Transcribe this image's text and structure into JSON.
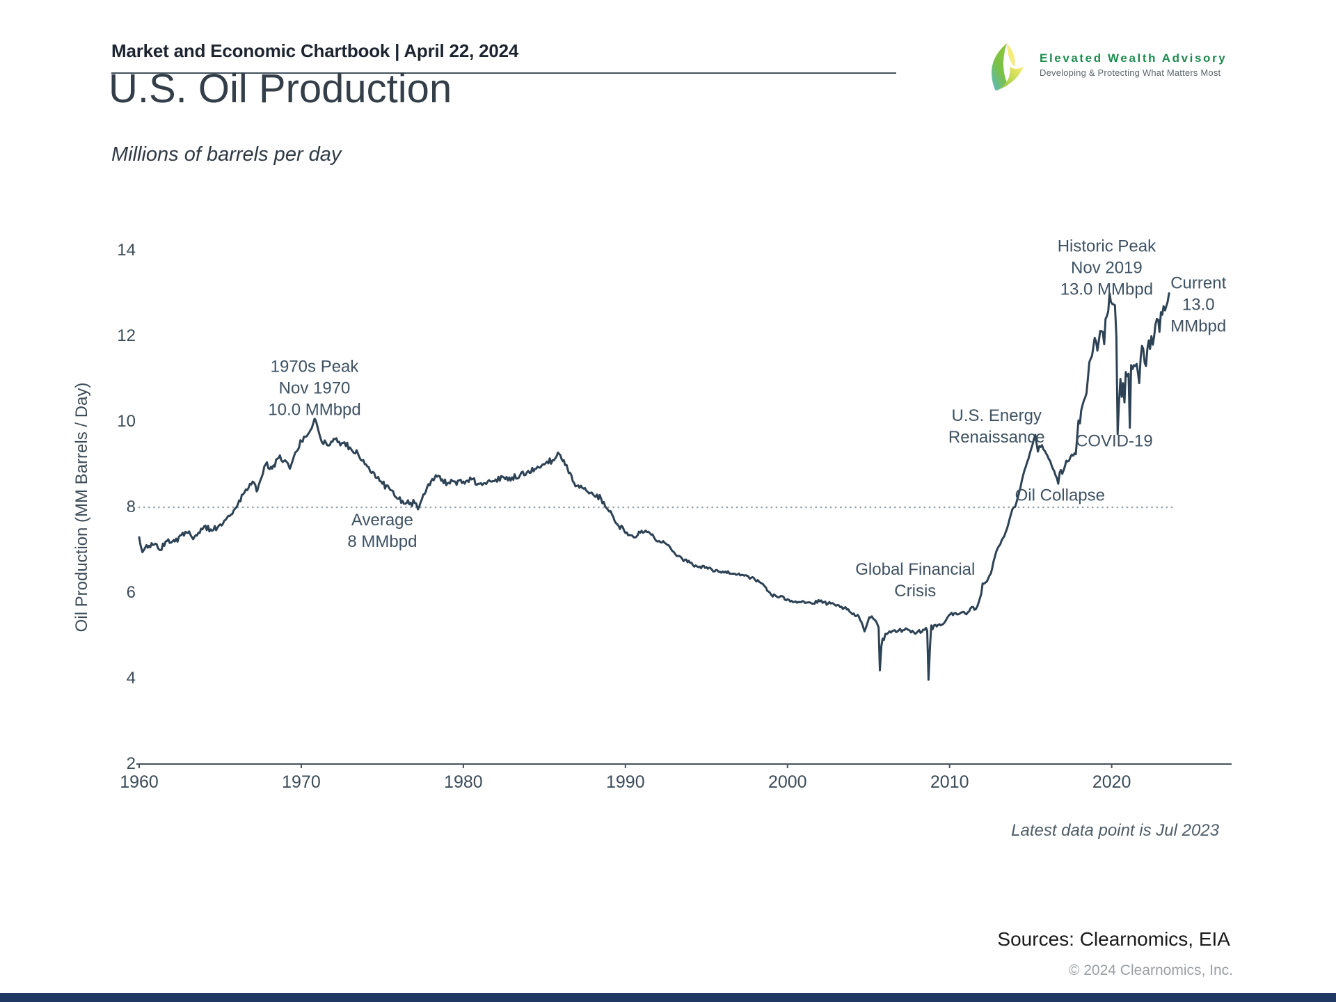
{
  "header": {
    "chartbook_title": "Market and Economic Chartbook | April 22, 2024"
  },
  "logo": {
    "name": "Elevated Wealth Advisory",
    "tagline": "Developing & Protecting What Matters Most",
    "icon": "leaf-sail-icon"
  },
  "title": "U.S. Oil Production",
  "subtitle": "Millions of barrels per day",
  "footer": {
    "latest_note": "Latest data point is Jul 2023",
    "sources": "Sources: Clearnomics, EIA",
    "copyright": "© 2024 Clearnomics, Inc."
  },
  "colors": {
    "line": "#2d4254",
    "axis": "#43525e",
    "dotted_average": "#98a3ab",
    "annotation_text": "#3e5263",
    "logo_green": "#1d8a4e",
    "footer_bar_navy": "#1f3864"
  },
  "chart_data": {
    "type": "line",
    "title": "U.S. Oil Production",
    "ylabel": "Oil Production (MM Barrels / Day)",
    "xlabel": "",
    "xlim": [
      1960,
      2027.4
    ],
    "ylim": [
      2,
      14
    ],
    "x_ticks": [
      1960,
      1970,
      1980,
      1990,
      2000,
      2010,
      2020
    ],
    "y_ticks": [
      2,
      4,
      6,
      8,
      10,
      12,
      14
    ],
    "grid": false,
    "legend": "none",
    "average_line": {
      "value": 8,
      "x_start": 1960,
      "x_end": 2023.8,
      "style": "dotted"
    },
    "series": [
      {
        "name": "U.S. oil production (MM barrels per day, monthly)",
        "points": [
          [
            1960.0,
            7.3
          ],
          [
            1960.2,
            6.95
          ],
          [
            1960.6,
            7.1
          ],
          [
            1961.0,
            7.15
          ],
          [
            1961.3,
            7.0
          ],
          [
            1961.8,
            7.25
          ],
          [
            1962.2,
            7.2
          ],
          [
            1962.6,
            7.35
          ],
          [
            1963.0,
            7.4
          ],
          [
            1963.4,
            7.3
          ],
          [
            1964.0,
            7.55
          ],
          [
            1964.5,
            7.45
          ],
          [
            1965.0,
            7.6
          ],
          [
            1965.5,
            7.8
          ],
          [
            1966.0,
            8.0
          ],
          [
            1966.5,
            8.35
          ],
          [
            1967.0,
            8.6
          ],
          [
            1967.3,
            8.4
          ],
          [
            1967.8,
            9.0
          ],
          [
            1968.2,
            8.9
          ],
          [
            1968.6,
            9.15
          ],
          [
            1969.0,
            9.1
          ],
          [
            1969.3,
            8.9
          ],
          [
            1969.7,
            9.3
          ],
          [
            1970.0,
            9.55
          ],
          [
            1970.4,
            9.7
          ],
          [
            1970.87,
            10.05
          ],
          [
            1971.2,
            9.6
          ],
          [
            1971.6,
            9.45
          ],
          [
            1972.0,
            9.6
          ],
          [
            1972.5,
            9.5
          ],
          [
            1973.0,
            9.4
          ],
          [
            1973.5,
            9.25
          ],
          [
            1974.0,
            9.0
          ],
          [
            1974.5,
            8.8
          ],
          [
            1975.0,
            8.55
          ],
          [
            1975.5,
            8.4
          ],
          [
            1976.0,
            8.2
          ],
          [
            1976.5,
            8.1
          ],
          [
            1977.0,
            8.1
          ],
          [
            1977.2,
            7.95
          ],
          [
            1977.6,
            8.3
          ],
          [
            1978.0,
            8.6
          ],
          [
            1978.3,
            8.75
          ],
          [
            1978.7,
            8.65
          ],
          [
            1979.0,
            8.55
          ],
          [
            1979.5,
            8.6
          ],
          [
            1980.0,
            8.6
          ],
          [
            1980.5,
            8.65
          ],
          [
            1981.0,
            8.55
          ],
          [
            1981.5,
            8.6
          ],
          [
            1982.0,
            8.65
          ],
          [
            1982.5,
            8.7
          ],
          [
            1983.0,
            8.7
          ],
          [
            1983.5,
            8.75
          ],
          [
            1984.0,
            8.85
          ],
          [
            1984.5,
            8.9
          ],
          [
            1985.0,
            9.0
          ],
          [
            1985.5,
            9.1
          ],
          [
            1985.9,
            9.25
          ],
          [
            1986.2,
            9.1
          ],
          [
            1986.5,
            8.8
          ],
          [
            1987.0,
            8.5
          ],
          [
            1987.5,
            8.45
          ],
          [
            1988.0,
            8.3
          ],
          [
            1988.5,
            8.2
          ],
          [
            1989.0,
            7.9
          ],
          [
            1989.5,
            7.6
          ],
          [
            1990.0,
            7.4
          ],
          [
            1990.5,
            7.3
          ],
          [
            1991.0,
            7.45
          ],
          [
            1991.5,
            7.4
          ],
          [
            1992.0,
            7.2
          ],
          [
            1992.5,
            7.15
          ],
          [
            1993.0,
            6.95
          ],
          [
            1993.5,
            6.8
          ],
          [
            1994.0,
            6.7
          ],
          [
            1994.5,
            6.6
          ],
          [
            1995.0,
            6.6
          ],
          [
            1995.5,
            6.5
          ],
          [
            1996.0,
            6.5
          ],
          [
            1996.5,
            6.45
          ],
          [
            1997.0,
            6.45
          ],
          [
            1997.5,
            6.4
          ],
          [
            1998.0,
            6.3
          ],
          [
            1998.5,
            6.2
          ],
          [
            1999.0,
            5.95
          ],
          [
            1999.5,
            5.9
          ],
          [
            2000.0,
            5.85
          ],
          [
            2000.5,
            5.8
          ],
          [
            2001.0,
            5.8
          ],
          [
            2001.5,
            5.75
          ],
          [
            2002.0,
            5.8
          ],
          [
            2002.5,
            5.75
          ],
          [
            2003.0,
            5.7
          ],
          [
            2003.5,
            5.65
          ],
          [
            2004.0,
            5.5
          ],
          [
            2004.4,
            5.45
          ],
          [
            2004.75,
            5.1
          ],
          [
            2005.04,
            5.43
          ],
          [
            2005.2,
            5.45
          ],
          [
            2005.37,
            5.37
          ],
          [
            2005.54,
            5.27
          ],
          [
            2005.62,
            5.19
          ],
          [
            2005.7,
            4.19
          ],
          [
            2005.79,
            4.75
          ],
          [
            2005.87,
            4.93
          ],
          [
            2005.95,
            4.9
          ],
          [
            2006.04,
            5.04
          ],
          [
            2006.29,
            5.1
          ],
          [
            2006.54,
            5.12
          ],
          [
            2006.79,
            5.1
          ],
          [
            2006.95,
            5.16
          ],
          [
            2007.04,
            5.09
          ],
          [
            2007.29,
            5.17
          ],
          [
            2007.54,
            5.12
          ],
          [
            2007.79,
            5.08
          ],
          [
            2007.95,
            5.06
          ],
          [
            2008.04,
            5.1
          ],
          [
            2008.29,
            5.09
          ],
          [
            2008.54,
            5.18
          ],
          [
            2008.62,
            5.12
          ],
          [
            2008.7,
            3.97
          ],
          [
            2008.79,
            4.73
          ],
          [
            2008.87,
            5.24
          ],
          [
            2008.95,
            5.15
          ],
          [
            2009.04,
            5.24
          ],
          [
            2009.29,
            5.25
          ],
          [
            2009.54,
            5.26
          ],
          [
            2009.79,
            5.37
          ],
          [
            2010.04,
            5.5
          ],
          [
            2010.29,
            5.52
          ],
          [
            2010.54,
            5.5
          ],
          [
            2010.79,
            5.55
          ],
          [
            2011.04,
            5.5
          ],
          [
            2011.37,
            5.67
          ],
          [
            2011.62,
            5.62
          ],
          [
            2011.87,
            5.87
          ],
          [
            2011.95,
            5.97
          ],
          [
            2012.04,
            6.22
          ],
          [
            2012.29,
            6.26
          ],
          [
            2012.54,
            6.45
          ],
          [
            2012.79,
            6.84
          ],
          [
            2012.95,
            7.03
          ],
          [
            2013.12,
            7.13
          ],
          [
            2013.37,
            7.32
          ],
          [
            2013.62,
            7.6
          ],
          [
            2013.87,
            7.95
          ],
          [
            2014.04,
            8.01
          ],
          [
            2014.29,
            8.35
          ],
          [
            2014.54,
            8.75
          ],
          [
            2014.79,
            9.06
          ],
          [
            2014.95,
            9.26
          ],
          [
            2015.04,
            9.37
          ],
          [
            2015.12,
            9.47
          ],
          [
            2015.29,
            9.69
          ],
          [
            2015.37,
            9.48
          ],
          [
            2015.45,
            9.3
          ],
          [
            2015.54,
            9.43
          ],
          [
            2015.62,
            9.41
          ],
          [
            2015.7,
            9.45
          ],
          [
            2015.79,
            9.35
          ],
          [
            2015.87,
            9.32
          ],
          [
            2015.95,
            9.26
          ],
          [
            2016.04,
            9.2
          ],
          [
            2016.12,
            9.13
          ],
          [
            2016.29,
            8.98
          ],
          [
            2016.45,
            8.85
          ],
          [
            2016.62,
            8.68
          ],
          [
            2016.7,
            8.55
          ],
          [
            2016.79,
            8.81
          ],
          [
            2016.87,
            8.87
          ],
          [
            2016.95,
            8.78
          ],
          [
            2017.04,
            8.87
          ],
          [
            2017.2,
            9.09
          ],
          [
            2017.37,
            9.09
          ],
          [
            2017.54,
            9.23
          ],
          [
            2017.79,
            9.24
          ],
          [
            2017.87,
            9.64
          ],
          [
            2017.95,
            10.03
          ],
          [
            2018.04,
            9.96
          ],
          [
            2018.12,
            10.26
          ],
          [
            2018.29,
            10.5
          ],
          [
            2018.45,
            10.67
          ],
          [
            2018.62,
            11.39
          ],
          [
            2018.79,
            11.54
          ],
          [
            2018.95,
            11.96
          ],
          [
            2019.04,
            11.87
          ],
          [
            2019.12,
            11.66
          ],
          [
            2019.29,
            12.12
          ],
          [
            2019.45,
            12.1
          ],
          [
            2019.54,
            11.81
          ],
          [
            2019.62,
            12.4
          ],
          [
            2019.7,
            12.46
          ],
          [
            2019.79,
            12.58
          ],
          [
            2019.87,
            13.0
          ],
          [
            2019.95,
            12.8
          ],
          [
            2020.04,
            12.75
          ],
          [
            2020.12,
            12.74
          ],
          [
            2020.2,
            12.72
          ],
          [
            2020.29,
            11.99
          ],
          [
            2020.37,
            9.71
          ],
          [
            2020.45,
            10.44
          ],
          [
            2020.54,
            11.0
          ],
          [
            2020.62,
            10.58
          ],
          [
            2020.7,
            10.9
          ],
          [
            2020.79,
            10.45
          ],
          [
            2020.87,
            11.16
          ],
          [
            2020.95,
            11.06
          ],
          [
            2021.04,
            11.12
          ],
          [
            2021.12,
            9.86
          ],
          [
            2021.2,
            11.32
          ],
          [
            2021.29,
            11.23
          ],
          [
            2021.37,
            11.32
          ],
          [
            2021.45,
            11.3
          ],
          [
            2021.54,
            11.35
          ],
          [
            2021.62,
            11.14
          ],
          [
            2021.7,
            10.9
          ],
          [
            2021.79,
            11.5
          ],
          [
            2021.87,
            11.77
          ],
          [
            2021.95,
            11.7
          ],
          [
            2022.04,
            11.37
          ],
          [
            2022.12,
            11.3
          ],
          [
            2022.2,
            11.7
          ],
          [
            2022.29,
            11.9
          ],
          [
            2022.37,
            11.7
          ],
          [
            2022.45,
            12.0
          ],
          [
            2022.54,
            11.8
          ],
          [
            2022.62,
            12.0
          ],
          [
            2022.7,
            12.27
          ],
          [
            2022.79,
            12.4
          ],
          [
            2022.87,
            12.38
          ],
          [
            2022.95,
            12.1
          ],
          [
            2023.04,
            12.56
          ],
          [
            2023.12,
            12.5
          ],
          [
            2023.2,
            12.7
          ],
          [
            2023.29,
            12.6
          ],
          [
            2023.37,
            12.7
          ],
          [
            2023.45,
            12.8
          ],
          [
            2023.54,
            13.0
          ]
        ]
      }
    ],
    "annotations": [
      {
        "id": "peak-1970s",
        "lines": [
          "1970s Peak",
          "Nov 1970",
          "10.0 MMbpd"
        ],
        "year": 1970.82,
        "value": 10.78
      },
      {
        "id": "average",
        "lines": [
          "Average",
          "8 MMbpd"
        ],
        "year": 1975.0,
        "value": 7.45
      },
      {
        "id": "global-financial-crisis",
        "lines": [
          "Global Financial",
          "Crisis"
        ],
        "year": 2007.88,
        "value": 6.29
      },
      {
        "id": "us-energy-renaissance",
        "lines": [
          "U.S. Energy",
          "Renaissance"
        ],
        "year": 2012.9,
        "value": 9.89
      },
      {
        "id": "oil-collapse",
        "lines": [
          "Oil Collapse"
        ],
        "year": 2016.81,
        "value": 8.28
      },
      {
        "id": "covid-19",
        "lines": [
          "COVID-19"
        ],
        "year": 2020.16,
        "value": 9.55
      },
      {
        "id": "historic-peak",
        "lines": [
          "Historic Peak",
          "Nov 2019",
          "13.0 MMbpd"
        ],
        "year": 2019.69,
        "value": 13.6
      },
      {
        "id": "current",
        "lines": [
          "Current",
          "13.0",
          "MMbpd"
        ],
        "year": 2025.35,
        "value": 12.73
      }
    ]
  }
}
